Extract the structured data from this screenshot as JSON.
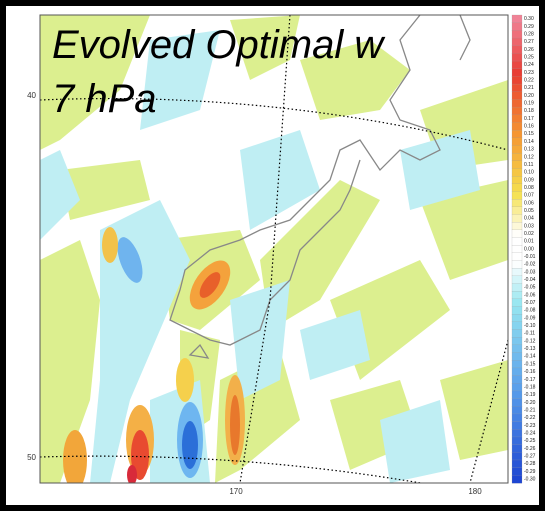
{
  "title": "Evolved Optimal w",
  "subtitle": "7 hPa",
  "lat_labels": [
    "40",
    "50"
  ],
  "lon_labels": [
    "170",
    "180"
  ],
  "colorbar": {
    "labels": [
      "0.30",
      "0.29",
      "0.28",
      "0.27",
      "0.26",
      "0.25",
      "0.24",
      "0.23",
      "0.22",
      "0.21",
      "0.20",
      "0.19",
      "0.18",
      "0.17",
      "0.16",
      "0.15",
      "0.14",
      "0.13",
      "0.12",
      "0.11",
      "0.10",
      "0.09",
      "0.08",
      "0.07",
      "0.06",
      "0.05",
      "0.04",
      "0.03",
      "0.02",
      "0.01",
      "0.00",
      "-0.01",
      "-0.02",
      "-0.03",
      "-0.04",
      "-0.05",
      "-0.06",
      "-0.07",
      "-0.08",
      "-0.09",
      "-0.10",
      "-0.11",
      "-0.12",
      "-0.13",
      "-0.14",
      "-0.15",
      "-0.16",
      "-0.17",
      "-0.18",
      "-0.19",
      "-0.20",
      "-0.21",
      "-0.22",
      "-0.23",
      "-0.24",
      "-0.25",
      "-0.26",
      "-0.27",
      "-0.28",
      "-0.29",
      "-0.30"
    ]
  }
}
